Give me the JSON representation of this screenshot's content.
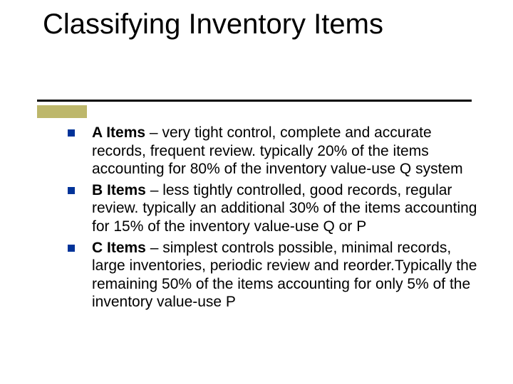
{
  "slide": {
    "title": "Classifying Inventory Items",
    "accent_color": "#bdb76b",
    "bullet_color": "#003399",
    "underline_color": "#000000",
    "title_fontsize": 40,
    "body_fontsize": 21,
    "items": [
      {
        "label": "A Items",
        "body": " – very tight control, complete and accurate records, frequent review. typically 20% of the items accounting for 80% of the inventory value-use Q system"
      },
      {
        "label": "B Items",
        "body": " – less tightly controlled, good records, regular review. typically an additional 30% of the items accounting for 15% of the inventory value-use Q or P"
      },
      {
        "label": "C Items",
        "body": " – simplest controls possible, minimal records, large inventories, periodic review and reorder.Typically the remaining 50% of the items accounting for only 5% of the inventory value-use P"
      }
    ]
  }
}
